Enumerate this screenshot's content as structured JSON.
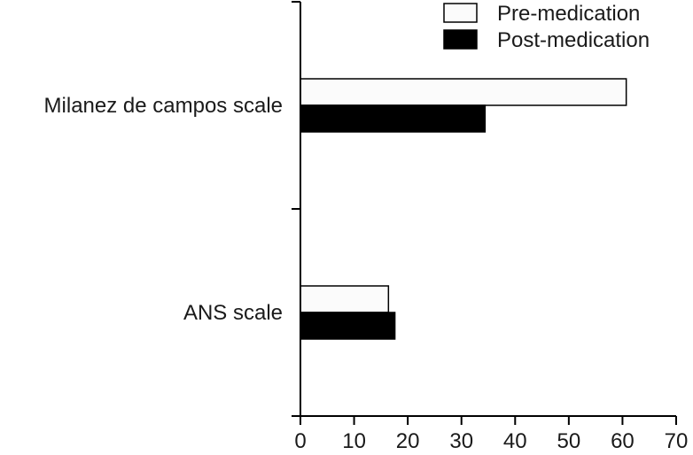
{
  "chart_data": {
    "type": "bar",
    "orientation": "horizontal",
    "categories": [
      "Milanez de campos scale",
      "ANS scale"
    ],
    "series": [
      {
        "name": "Pre-medication",
        "values": [
          60.7,
          16.4
        ],
        "color": "#fbfbfb",
        "stroke": "#000000"
      },
      {
        "name": "Post-medication",
        "values": [
          34.4,
          17.6
        ],
        "color": "#000000",
        "stroke": "#000000"
      }
    ],
    "xlim": [
      0,
      70
    ],
    "xticks": [
      0,
      10,
      20,
      30,
      40,
      50,
      60,
      70
    ],
    "xtick_labels": [
      "0",
      "10",
      "20",
      "30",
      "40",
      "50",
      "60",
      "70"
    ],
    "title": "",
    "xlabel": "",
    "ylabel": "",
    "grid": false,
    "legend_position": "top-right"
  }
}
